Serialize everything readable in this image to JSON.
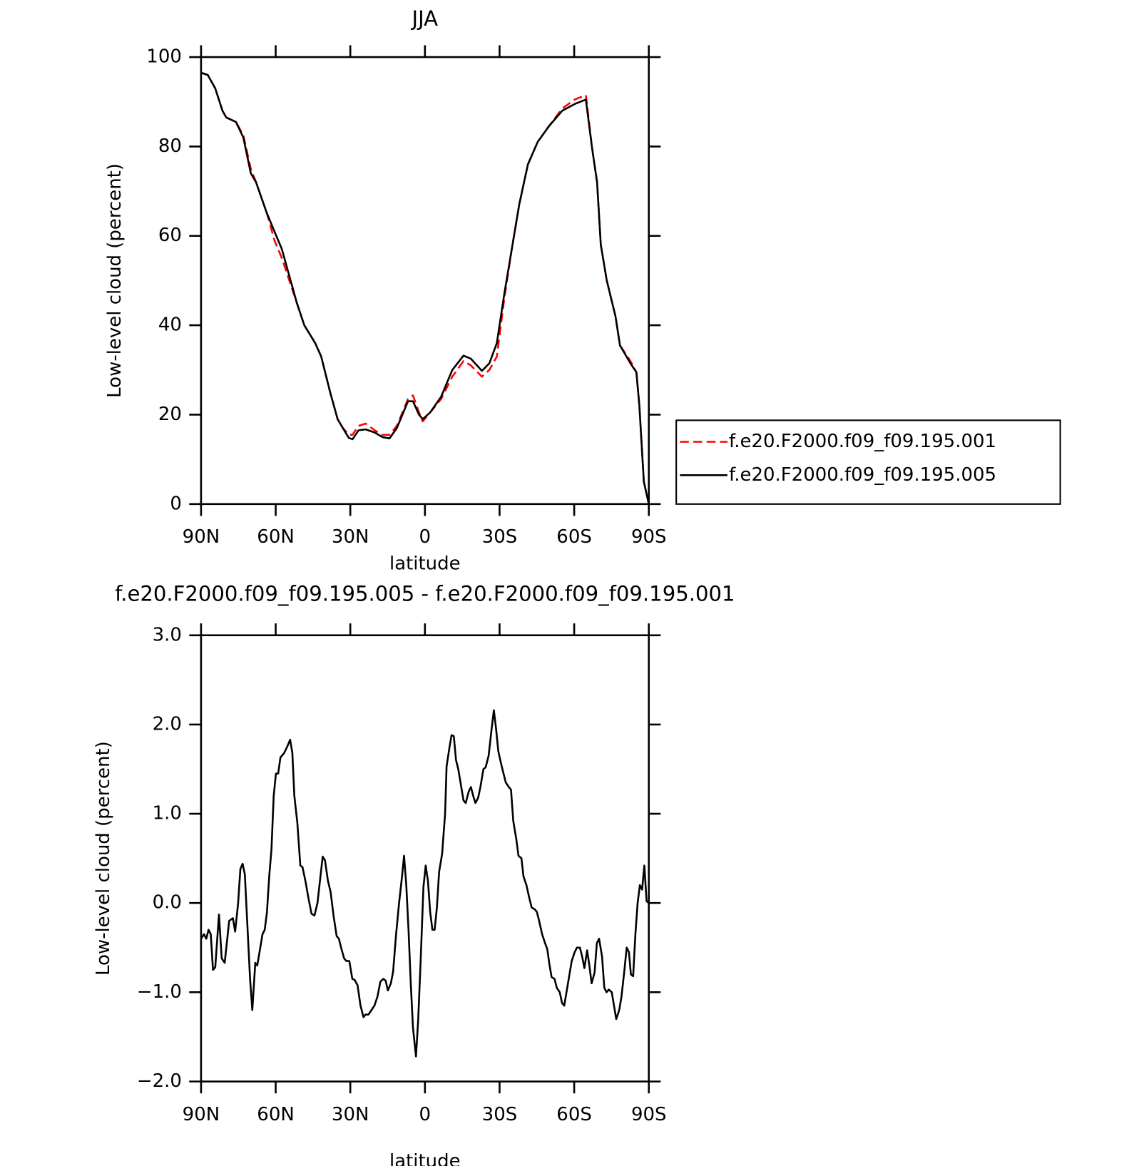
{
  "chart_data": [
    {
      "type": "line",
      "title": "JJA",
      "xlabel": "latitude",
      "ylabel": "Low-level cloud (percent)",
      "xlim": [
        90,
        -90
      ],
      "xticks": [
        {
          "value": 90,
          "label": "90N"
        },
        {
          "value": 60,
          "label": "60N"
        },
        {
          "value": 30,
          "label": "30N"
        },
        0,
        {
          "value": -30,
          "label": "30S"
        },
        {
          "value": -60,
          "label": "60S"
        },
        {
          "value": -90,
          "label": "90S"
        }
      ],
      "ylim": [
        0,
        100
      ],
      "yticks": [
        0,
        20,
        40,
        60,
        80,
        100
      ],
      "legend": "right",
      "x": [
        90,
        87.3,
        84.3,
        81.4,
        79.9,
        76.0,
        73.0,
        70.0,
        67.9,
        63.5,
        60.5,
        57.5,
        54.5,
        51.5,
        48.5,
        44.1,
        41.7,
        38.1,
        35.1,
        33.0,
        30.6,
        29.1,
        26.7,
        23.8,
        20.2,
        17.2,
        14.2,
        11.3,
        6.8,
        4.8,
        2.4,
        0.9,
        -2.1,
        -6.5,
        -11.0,
        -15.5,
        -18.5,
        -22.9,
        -25.9,
        -28.9,
        -31.9,
        -34.9,
        -37.9,
        -41.4,
        -45.3,
        -49.8,
        -55.2,
        -60.2,
        -64.7,
        -67.1,
        -69.2,
        -70.7,
        -73.1,
        -76.6,
        -78.4,
        -82.6,
        -85.0,
        -86.2,
        -88.0,
        -90
      ],
      "series": [
        {
          "name": "f.e20.F2000.f09_f09.195.001",
          "color": "#ff0000",
          "dash": true,
          "values": [
            96.5,
            96,
            93,
            88,
            86.5,
            85.5,
            82.5,
            75,
            72,
            65,
            59,
            55,
            50,
            45,
            40,
            36,
            33,
            25,
            19,
            17,
            15.5,
            15.5,
            17.5,
            18,
            16.5,
            15.5,
            15.5,
            17.5,
            23.5,
            24.3,
            20.5,
            18.5,
            20.5,
            23.5,
            28.5,
            32,
            31,
            28.5,
            30,
            33,
            46,
            57,
            67,
            76,
            81,
            84.5,
            88.5,
            90.5,
            91.5,
            80,
            72,
            58,
            50,
            42,
            35.5,
            32,
            29.5,
            22,
            5,
            0
          ]
        },
        {
          "name": "f.e20.F2000.f09_f09.195.005",
          "color": "#000000",
          "dash": false,
          "values": [
            96.5,
            96,
            93,
            88,
            86.5,
            85.5,
            82,
            74,
            72,
            65,
            61,
            57,
            51,
            45,
            40,
            36,
            33,
            25,
            19,
            17,
            14.8,
            14.5,
            16.5,
            16.7,
            16,
            15,
            14.7,
            17,
            23,
            23,
            20,
            19,
            20.5,
            24,
            30,
            33.2,
            32.5,
            29.8,
            31.5,
            36,
            47,
            57,
            67,
            76,
            81,
            84.5,
            88,
            89.5,
            90.5,
            80,
            72,
            58,
            50,
            42,
            35.5,
            31.5,
            29.5,
            22,
            5,
            0
          ]
        }
      ]
    },
    {
      "type": "line",
      "title": "f.e20.F2000.f09_f09.195.005 - f.e20.F2000.f09_f09.195.001",
      "xlabel": "latitude",
      "ylabel": "Low-level cloud (percent)",
      "xlim": [
        90,
        -90
      ],
      "xticks": [
        {
          "value": 90,
          "label": "90N"
        },
        {
          "value": 60,
          "label": "60N"
        },
        {
          "value": 30,
          "label": "30N"
        },
        0,
        {
          "value": -30,
          "label": "30S"
        },
        {
          "value": -60,
          "label": "60S"
        },
        {
          "value": -90,
          "label": "90S"
        }
      ],
      "ylim": [
        -2,
        3
      ],
      "yticks": [
        {
          "value": -2,
          "label": "−2.0"
        },
        {
          "value": -1,
          "label": "−1.0"
        },
        {
          "value": 0,
          "label": "0.0"
        },
        {
          "value": 1,
          "label": "1.0"
        },
        {
          "value": 2,
          "label": "2.0"
        },
        {
          "value": 3,
          "label": "3.0"
        }
      ],
      "color": "#000000",
      "x": [
        90.0,
        88.8,
        87.9,
        87.0,
        86.1,
        85.2,
        84.3,
        82.8,
        81.7,
        80.5,
        78.7,
        77.2,
        76.3,
        75.1,
        74.2,
        73.3,
        72.4,
        71.2,
        70.3,
        69.4,
        68.2,
        67.4,
        66.5,
        65.3,
        64.4,
        63.5,
        62.6,
        61.7,
        60.8,
        59.9,
        59.0,
        58.1,
        56.6,
        55.4,
        54.2,
        53.3,
        52.5,
        51.3,
        50.1,
        49.2,
        48.0,
        46.8,
        45.6,
        44.4,
        43.2,
        42.0,
        41.1,
        40.2,
        39.0,
        37.9,
        36.7,
        35.5,
        34.6,
        33.7,
        32.5,
        31.6,
        30.4,
        29.2,
        28.3,
        27.1,
        25.9,
        24.7,
        23.9,
        22.7,
        21.5,
        20.3,
        19.1,
        17.9,
        16.7,
        15.8,
        14.9,
        13.7,
        12.8,
        11.6,
        10.4,
        9.2,
        8.4,
        7.5,
        6.6,
        5.7,
        4.8,
        3.6,
        2.7,
        1.8,
        0.6,
        -0.3,
        -1.2,
        -2.1,
        -3.0,
        -3.9,
        -4.8,
        -5.7,
        -6.9,
        -8.1,
        -8.7,
        -9.9,
        -10.7,
        -11.6,
        -12.5,
        -13.4,
        -14.6,
        -15.5,
        -16.4,
        -17.6,
        -18.5,
        -19.4,
        -20.3,
        -21.4,
        -22.3,
        -23.5,
        -24.4,
        -25.6,
        -26.8,
        -27.7,
        -28.6,
        -29.5,
        -30.7,
        -31.6,
        -32.5,
        -33.7,
        -34.6,
        -35.5,
        -36.7,
        -37.6,
        -38.8,
        -39.6,
        -40.8,
        -42.0,
        -42.9,
        -44.1,
        -45.0,
        -45.9,
        -47.1,
        -48.3,
        -49.2,
        -50.0,
        -50.9,
        -52.1,
        -53.0,
        -54.2,
        -55.1,
        -56.0,
        -57.2,
        -58.1,
        -59.0,
        -60.2,
        -61.1,
        -62.3,
        -63.2,
        -64.1,
        -65.2,
        -66.1,
        -67.0,
        -68.2,
        -69.1,
        -70.0,
        -71.2,
        -72.1,
        -73.0,
        -73.9,
        -75.1,
        -76.0,
        -76.9,
        -78.1,
        -79.0,
        -80.2,
        -81.1,
        -82.0,
        -82.8,
        -83.7,
        -84.6,
        -85.5,
        -86.4,
        -87.3,
        -88.2,
        -89.1,
        -90.0
      ],
      "values": [
        -0.4,
        -0.35,
        -0.4,
        -0.3,
        -0.35,
        -0.75,
        -0.72,
        -0.13,
        -0.62,
        -0.67,
        -0.2,
        -0.17,
        -0.32,
        0.0,
        0.38,
        0.44,
        0.32,
        -0.35,
        -0.85,
        -1.2,
        -0.67,
        -0.7,
        -0.55,
        -0.35,
        -0.3,
        -0.1,
        0.3,
        0.6,
        1.2,
        1.45,
        1.45,
        1.63,
        1.68,
        1.75,
        1.83,
        1.68,
        1.2,
        0.9,
        0.42,
        0.4,
        0.24,
        0.05,
        -0.12,
        -0.14,
        0.0,
        0.3,
        0.52,
        0.48,
        0.25,
        0.12,
        -0.15,
        -0.37,
        -0.4,
        -0.5,
        -0.62,
        -0.65,
        -0.65,
        -0.85,
        -0.86,
        -0.92,
        -1.15,
        -1.28,
        -1.25,
        -1.25,
        -1.2,
        -1.15,
        -1.05,
        -0.88,
        -0.85,
        -0.87,
        -0.98,
        -0.9,
        -0.77,
        -0.35,
        0.0,
        0.3,
        0.53,
        0.2,
        -0.3,
        -0.9,
        -1.4,
        -1.72,
        -1.3,
        -0.7,
        0.18,
        0.42,
        0.25,
        -0.1,
        -0.3,
        -0.3,
        -0.05,
        0.35,
        0.55,
        1.0,
        1.53,
        1.75,
        1.88,
        1.87,
        1.6,
        1.5,
        1.3,
        1.15,
        1.12,
        1.25,
        1.3,
        1.2,
        1.12,
        1.18,
        1.3,
        1.5,
        1.52,
        1.65,
        1.95,
        2.16,
        1.95,
        1.7,
        1.55,
        1.45,
        1.35,
        1.3,
        1.27,
        0.92,
        0.72,
        0.53,
        0.5,
        0.3,
        0.2,
        0.05,
        -0.05,
        -0.07,
        -0.1,
        -0.2,
        -0.35,
        -0.45,
        -0.52,
        -0.68,
        -0.83,
        -0.85,
        -0.95,
        -1.0,
        -1.12,
        -1.15,
        -0.95,
        -0.8,
        -0.65,
        -0.55,
        -0.5,
        -0.5,
        -0.6,
        -0.73,
        -0.53,
        -0.7,
        -0.9,
        -0.78,
        -0.45,
        -0.4,
        -0.6,
        -0.95,
        -1.0,
        -0.97,
        -1.0,
        -1.15,
        -1.3,
        -1.2,
        -1.05,
        -0.75,
        -0.5,
        -0.55,
        -0.8,
        -0.82,
        -0.35,
        0.0,
        0.2,
        0.15,
        0.42,
        0.02,
        0.0
      ]
    }
  ]
}
